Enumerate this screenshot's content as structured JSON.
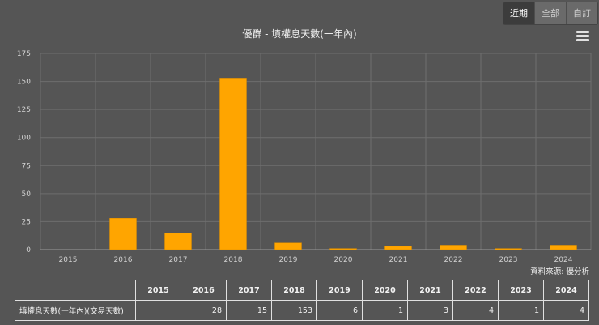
{
  "range_buttons": [
    {
      "label": "近期",
      "active": true
    },
    {
      "label": "全部",
      "active": false
    },
    {
      "label": "自訂",
      "active": false
    }
  ],
  "credit": "資料來源: 優分析",
  "table": {
    "row_label": "填權息天數(一年內)(交易天數)",
    "columns": [
      "2015",
      "2016",
      "2017",
      "2018",
      "2019",
      "2020",
      "2021",
      "2022",
      "2023",
      "2024"
    ],
    "values": [
      "",
      "28",
      "15",
      "153",
      "6",
      "1",
      "3",
      "4",
      "1",
      "4"
    ]
  },
  "chart_data": {
    "type": "bar",
    "title": "優群 - 填權息天數(一年內)",
    "categories": [
      "2015",
      "2016",
      "2017",
      "2018",
      "2019",
      "2020",
      "2021",
      "2022",
      "2023",
      "2024"
    ],
    "values": [
      0,
      28,
      15,
      153,
      6,
      1,
      3,
      4,
      1,
      4
    ],
    "ylim": [
      0,
      175
    ],
    "yticks": [
      0,
      25,
      50,
      75,
      100,
      125,
      150,
      175
    ],
    "grid": true,
    "bar_color": "#ffa500",
    "grid_color": "#6e6e6e"
  }
}
